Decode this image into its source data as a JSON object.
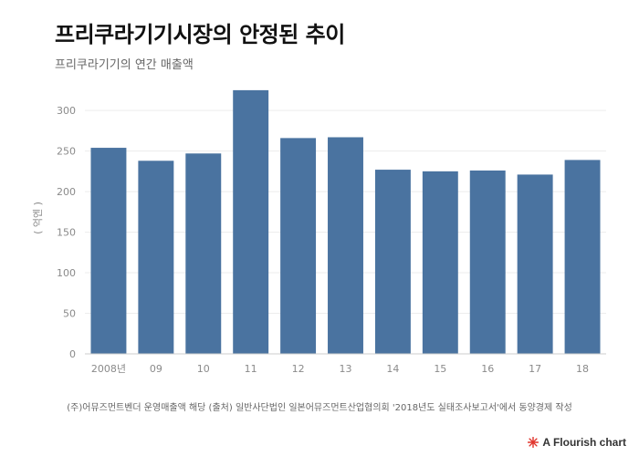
{
  "chart_data": {
    "type": "bar",
    "title": "프리쿠라기기시장의 안정된 추이",
    "subtitle": "프리쿠라기기의 연간 매출액",
    "ylabel": "( 억엔 )",
    "xlabel": "",
    "categories": [
      "2008년",
      "09",
      "10",
      "11",
      "12",
      "13",
      "14",
      "15",
      "16",
      "17",
      "18"
    ],
    "values": [
      254,
      238,
      247,
      325,
      266,
      267,
      227,
      225,
      226,
      221,
      239
    ],
    "ylim": [
      0,
      335
    ],
    "yticks": [
      0,
      50,
      100,
      150,
      200,
      250,
      300
    ],
    "grid": true,
    "bar_color": "#4a73a0",
    "legend": "none"
  },
  "source_note": "(주)어뮤즈먼트벤더 운영매출액 해당 (출처) 일반사단법인 일본어뮤즈먼트산업협의회 '2018년도 실태조사보고서'에서 동양경제 작성",
  "credit": {
    "label": "A Flourish chart",
    "icon": "flourish-logo-icon",
    "icon_color": "#e0332b"
  }
}
